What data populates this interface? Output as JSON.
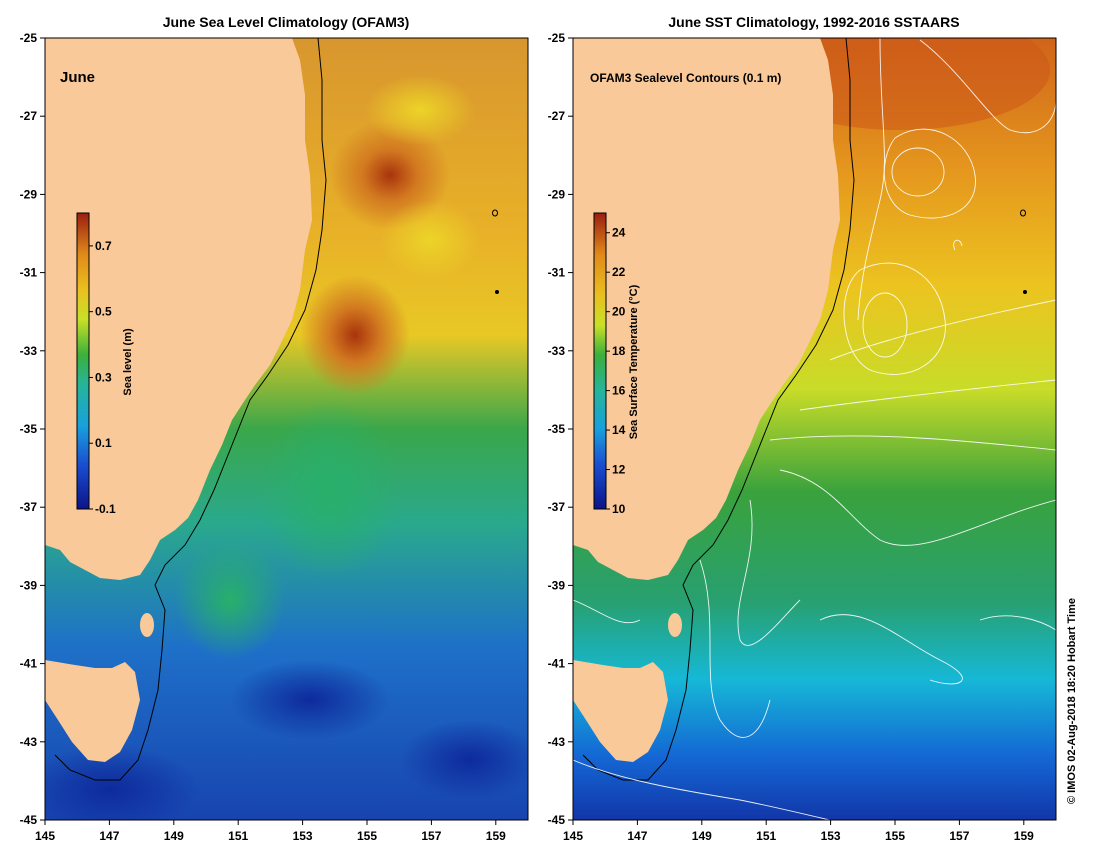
{
  "left_map": {
    "title": "June Sea Level Climatology (OFAM3)",
    "inset_label": "June",
    "colorbar": {
      "label": "Sea level (m)",
      "ticks": [
        "0.7",
        "0.5",
        "0.3",
        "0.1",
        "-0.1"
      ],
      "range": [
        -0.1,
        0.8
      ]
    }
  },
  "right_map": {
    "title": "June SST Climatology, 1992-2016 SSTAARS",
    "inset_label": "OFAM3 Sealevel Contours (0.1 m)",
    "colorbar": {
      "label": "Sea Surface Temperature (°C)",
      "ticks": [
        "24",
        "22",
        "20",
        "18",
        "16",
        "14",
        "12",
        "10"
      ],
      "range": [
        10,
        25
      ]
    }
  },
  "axes": {
    "lat_ticks": [
      "-25",
      "-27",
      "-29",
      "-31",
      "-33",
      "-35",
      "-37",
      "-39",
      "-41",
      "-43",
      "-45"
    ],
    "lon_ticks": [
      "145",
      "147",
      "149",
      "151",
      "153",
      "155",
      "157",
      "159"
    ],
    "lat_range": [
      -45,
      -25
    ],
    "lon_range": [
      145,
      160
    ]
  },
  "colors": {
    "land": "#f9c999",
    "high": "#a4300c",
    "mid": "#38b44a",
    "low": "#1438b8"
  },
  "footer": {
    "copyright": "© IMOS 02-Aug-2018 18:20 Hobart Time"
  }
}
